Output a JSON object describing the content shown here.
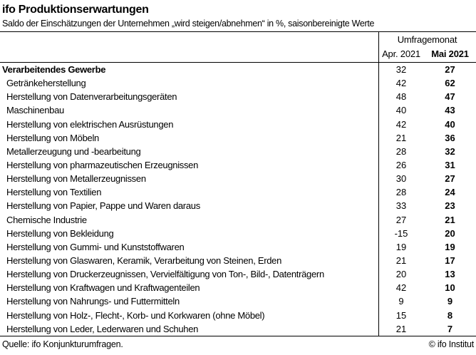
{
  "title": "ifo Produktionserwartungen",
  "subtitle": "Saldo der Einschätzungen der Unternehmen „wird steigen/abnehmen“ in %, saisonbereinigte Werte",
  "chart_data": {
    "type": "table",
    "title": "ifo Produktionserwartungen",
    "column_group_label": "Umfragemonat",
    "columns": [
      "Apr. 2021",
      "Mai 2021"
    ],
    "rows": [
      {
        "label": "Verarbeitendes Gewerbe",
        "apr": 32,
        "mai": 27,
        "bold": true
      },
      {
        "label": "Getränkeherstellung",
        "apr": 42,
        "mai": 62
      },
      {
        "label": "Herstellung von Datenverarbeitungsgeräten",
        "apr": 48,
        "mai": 47
      },
      {
        "label": "Maschinenbau",
        "apr": 40,
        "mai": 43
      },
      {
        "label": "Herstellung von elektrischen Ausrüstungen",
        "apr": 42,
        "mai": 40
      },
      {
        "label": "Herstellung von Möbeln",
        "apr": 21,
        "mai": 36
      },
      {
        "label": "Metallerzeugung und -bearbeitung",
        "apr": 28,
        "mai": 32
      },
      {
        "label": "Herstellung von pharmazeutischen Erzeugnissen",
        "apr": 26,
        "mai": 31
      },
      {
        "label": "Herstellung von Metallerzeugnissen",
        "apr": 30,
        "mai": 27
      },
      {
        "label": "Herstellung von Textilien",
        "apr": 28,
        "mai": 24
      },
      {
        "label": "Herstellung von Papier, Pappe und Waren daraus",
        "apr": 33,
        "mai": 23
      },
      {
        "label": "Chemische Industrie",
        "apr": 27,
        "mai": 21
      },
      {
        "label": "Herstellung von Bekleidung",
        "apr": -15,
        "mai": 20
      },
      {
        "label": "Herstellung von Gummi- und Kunststoffwaren",
        "apr": 19,
        "mai": 19
      },
      {
        "label": "Herstellung von Glaswaren, Keramik, Verarbeitung von Steinen, Erden",
        "apr": 21,
        "mai": 17
      },
      {
        "label": "Herstellung von Druckerzeugnissen, Vervielfältigung von Ton-, Bild-, Datenträgern",
        "apr": 20,
        "mai": 13
      },
      {
        "label": "Herstellung von Kraftwagen und Kraftwagenteilen",
        "apr": 42,
        "mai": 10
      },
      {
        "label": "Herstellung von Nahrungs- und Futtermitteln",
        "apr": 9,
        "mai": 9
      },
      {
        "label": "Herstellung von Holz-, Flecht-, Korb- und Korkwaren (ohne Möbel)",
        "apr": 15,
        "mai": 8
      },
      {
        "label": "Herstellung von Leder, Lederwaren und Schuhen",
        "apr": 21,
        "mai": 7
      }
    ]
  },
  "footer": {
    "source": "Quelle: ifo Konjunkturumfragen.",
    "copyright": "© ifo Institut"
  },
  "colors": {
    "text": "#000000",
    "line": "#000000",
    "background": "#ffffff"
  }
}
